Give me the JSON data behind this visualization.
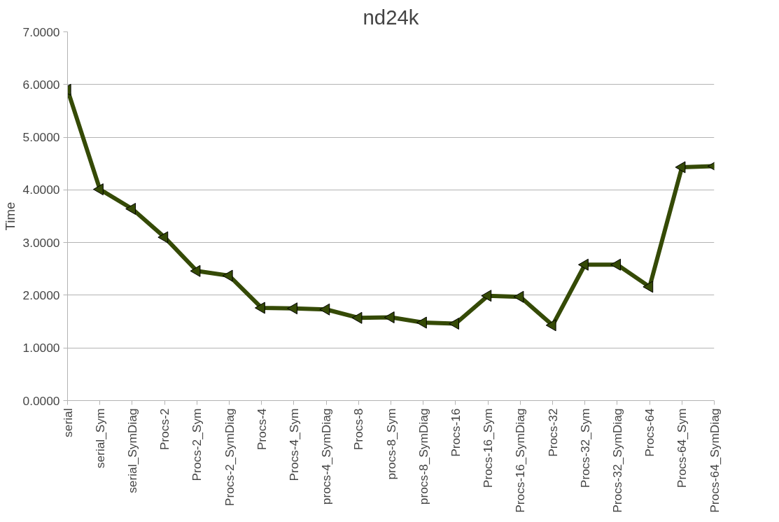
{
  "chart_data": {
    "type": "line",
    "title": "nd24k",
    "ylabel": "Time",
    "categories": [
      "serial",
      "serial_Sym",
      "serial_SymDiag",
      "Procs-2",
      "Procs-2_Sym",
      "Procs-2_SymDiag",
      "Procs-4",
      "Procs-4_Sym",
      "procs-4_SymDiag",
      "Procs-8",
      "procs-8_Sym",
      "procs-8_SymDiag",
      "Procs-16",
      "Procs-16_Sym",
      "Procs-16_SymDiag",
      "Procs-32",
      "Procs-32_Sym",
      "Procs-32_SymDiag",
      "Procs-64",
      "Procs-64_Sym",
      "Procs-64_SymDiag"
    ],
    "series": [
      {
        "color": "#354a06",
        "values": [
          5.9,
          4.01,
          3.64,
          3.1,
          2.46,
          2.37,
          1.76,
          1.75,
          1.73,
          1.57,
          1.58,
          1.48,
          1.46,
          1.99,
          1.97,
          1.43,
          2.58,
          2.58,
          2.16,
          4.43,
          4.45
        ]
      }
    ],
    "ylim": [
      0,
      7
    ],
    "yticks": [
      {
        "value": 0,
        "label": "0.0000"
      },
      {
        "value": 1,
        "label": "1.0000"
      },
      {
        "value": 2,
        "label": "2.0000"
      },
      {
        "value": 3,
        "label": "3.0000"
      },
      {
        "value": 4,
        "label": "4.0000"
      },
      {
        "value": 5,
        "label": "5.0000"
      },
      {
        "value": 6,
        "label": "6.0000"
      },
      {
        "value": 7,
        "label": "7.0000"
      }
    ],
    "grid": "y",
    "marker": "triangle",
    "line_style": "solid"
  }
}
